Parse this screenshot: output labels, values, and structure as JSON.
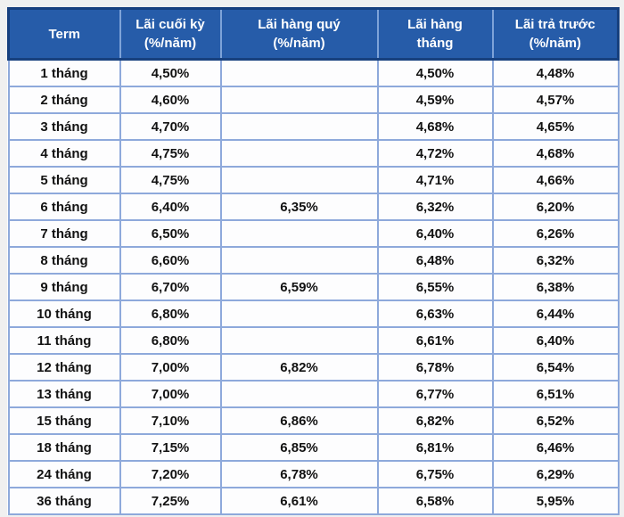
{
  "chart_data": {
    "type": "table",
    "title": "",
    "columns": [
      {
        "key": "term",
        "label": "Term",
        "sub": ""
      },
      {
        "key": "lai-cuoi-ky",
        "label": "Lãi cuối kỳ",
        "sub": "(%/năm)"
      },
      {
        "key": "lai-hang-quy",
        "label": "Lãi hàng quý",
        "sub": "(%/năm)"
      },
      {
        "key": "lai-hang-thang",
        "label": "Lãi hàng tháng",
        "sub": ""
      },
      {
        "key": "lai-tra-truoc",
        "label": "Lãi trả trước",
        "sub": "(%/năm)"
      }
    ],
    "rows": [
      {
        "term": "1 tháng",
        "lai_cuoi_ky": "4,50%",
        "lai_hang_quy": "",
        "lai_hang_thang": "4,50%",
        "lai_tra_truoc": "4,48%"
      },
      {
        "term": "2 tháng",
        "lai_cuoi_ky": "4,60%",
        "lai_hang_quy": "",
        "lai_hang_thang": "4,59%",
        "lai_tra_truoc": "4,57%"
      },
      {
        "term": "3 tháng",
        "lai_cuoi_ky": "4,70%",
        "lai_hang_quy": "",
        "lai_hang_thang": "4,68%",
        "lai_tra_truoc": "4,65%"
      },
      {
        "term": "4 tháng",
        "lai_cuoi_ky": "4,75%",
        "lai_hang_quy": "",
        "lai_hang_thang": "4,72%",
        "lai_tra_truoc": "4,68%"
      },
      {
        "term": "5 tháng",
        "lai_cuoi_ky": "4,75%",
        "lai_hang_quy": "",
        "lai_hang_thang": "4,71%",
        "lai_tra_truoc": "4,66%"
      },
      {
        "term": "6 tháng",
        "lai_cuoi_ky": "6,40%",
        "lai_hang_quy": "6,35%",
        "lai_hang_thang": "6,32%",
        "lai_tra_truoc": "6,20%"
      },
      {
        "term": "7 tháng",
        "lai_cuoi_ky": "6,50%",
        "lai_hang_quy": "",
        "lai_hang_thang": "6,40%",
        "lai_tra_truoc": "6,26%"
      },
      {
        "term": "8 tháng",
        "lai_cuoi_ky": "6,60%",
        "lai_hang_quy": "",
        "lai_hang_thang": "6,48%",
        "lai_tra_truoc": "6,32%"
      },
      {
        "term": "9 tháng",
        "lai_cuoi_ky": "6,70%",
        "lai_hang_quy": "6,59%",
        "lai_hang_thang": "6,55%",
        "lai_tra_truoc": "6,38%"
      },
      {
        "term": "10 tháng",
        "lai_cuoi_ky": "6,80%",
        "lai_hang_quy": "",
        "lai_hang_thang": "6,63%",
        "lai_tra_truoc": "6,44%"
      },
      {
        "term": "11 tháng",
        "lai_cuoi_ky": "6,80%",
        "lai_hang_quy": "",
        "lai_hang_thang": "6,61%",
        "lai_tra_truoc": "6,40%"
      },
      {
        "term": "12 tháng",
        "lai_cuoi_ky": "7,00%",
        "lai_hang_quy": "6,82%",
        "lai_hang_thang": "6,78%",
        "lai_tra_truoc": "6,54%"
      },
      {
        "term": "13 tháng",
        "lai_cuoi_ky": "7,00%",
        "lai_hang_quy": "",
        "lai_hang_thang": "6,77%",
        "lai_tra_truoc": "6,51%"
      },
      {
        "term": "15 tháng",
        "lai_cuoi_ky": "7,10%",
        "lai_hang_quy": "6,86%",
        "lai_hang_thang": "6,82%",
        "lai_tra_truoc": "6,52%"
      },
      {
        "term": "18 tháng",
        "lai_cuoi_ky": "7,15%",
        "lai_hang_quy": "6,85%",
        "lai_hang_thang": "6,81%",
        "lai_tra_truoc": "6,46%"
      },
      {
        "term": "24 tháng",
        "lai_cuoi_ky": "7,20%",
        "lai_hang_quy": "6,78%",
        "lai_hang_thang": "6,75%",
        "lai_tra_truoc": "6,29%"
      },
      {
        "term": "36 tháng",
        "lai_cuoi_ky": "7,25%",
        "lai_hang_quy": "6,61%",
        "lai_hang_thang": "6,58%",
        "lai_tra_truoc": "5,95%"
      }
    ]
  },
  "colors": {
    "header_bg": "#265CA9",
    "header_outer_border": "#17407E",
    "header_divider": "#7EA3D8",
    "grid_border": "#8EA9DB",
    "header_text": "#FFFFFF",
    "cell_text": "#121212",
    "page_bg": "#F0F0F0"
  }
}
